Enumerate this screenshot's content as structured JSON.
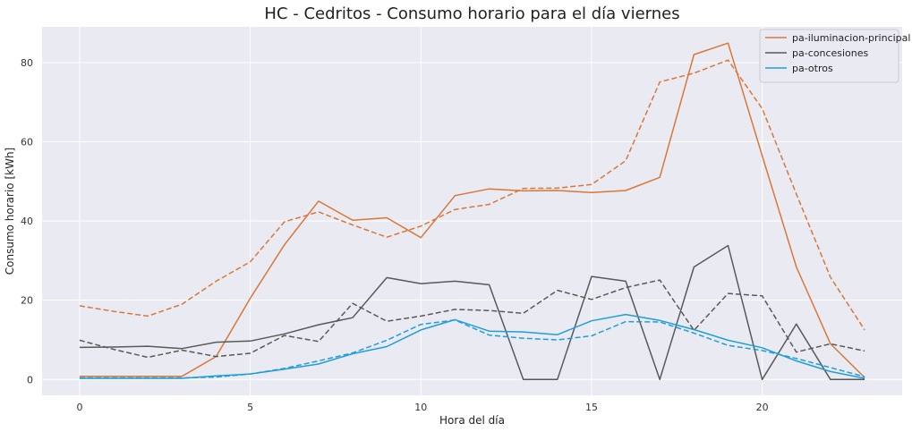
{
  "chart_data": {
    "type": "line",
    "title": "HC - Cedritos - Consumo horario para el día viernes",
    "xlabel": "Hora del día",
    "ylabel": "Consumo horario [kWh]",
    "xlim": [
      -1.1,
      24.1
    ],
    "ylim": [
      -4,
      89
    ],
    "xticks": [
      0,
      5,
      10,
      15,
      20
    ],
    "yticks": [
      0,
      20,
      40,
      60,
      80
    ],
    "grid": true,
    "legend_position": "top-right",
    "x": [
      0,
      1,
      2,
      3,
      4,
      5,
      6,
      7,
      8,
      9,
      10,
      11,
      12,
      13,
      14,
      15,
      16,
      17,
      18,
      19,
      20,
      21,
      22,
      23
    ],
    "series": [
      {
        "name": "pa-iluminacion-principal",
        "color": "#d9773a",
        "style": "solid",
        "values": [
          0.8,
          0.8,
          0.8,
          0.8,
          5.8,
          20.5,
          34,
          45,
          40.2,
          40.8,
          35.8,
          46.4,
          48.1,
          47.6,
          47.7,
          47.2,
          47.7,
          51,
          82,
          84.9,
          56.5,
          28.4,
          9,
          0.5
        ]
      },
      {
        "name": "pa-concesiones",
        "color": "#595959",
        "style": "solid",
        "values": [
          8.1,
          8.2,
          8.4,
          7.8,
          9.4,
          9.7,
          11.5,
          13.8,
          15.6,
          25.7,
          24.2,
          24.8,
          23.9,
          0,
          0,
          26,
          24.8,
          0,
          28.4,
          33.8,
          0,
          14,
          0,
          0
        ]
      },
      {
        "name": "pa-otros",
        "color": "#1f9fd8",
        "style": "solid",
        "values": [
          0.3,
          0.3,
          0.3,
          0.3,
          0.9,
          1.4,
          2.6,
          3.9,
          6.5,
          8.3,
          12.5,
          15.1,
          12.2,
          12,
          11.3,
          14.8,
          16.4,
          14.9,
          12.6,
          9.9,
          8,
          4.7,
          2,
          0.3
        ]
      },
      {
        "color": "#d9773a",
        "style": "dashed",
        "values": [
          18.6,
          17.2,
          16,
          19,
          24.8,
          29.7,
          39.8,
          42.3,
          39,
          35.9,
          38.7,
          42.9,
          44.2,
          48.2,
          48.3,
          49.2,
          55.2,
          75.1,
          77.3,
          80.6,
          68.4,
          46.8,
          25.8,
          12.5
        ]
      },
      {
        "color": "#595959",
        "style": "dashed",
        "values": [
          9.9,
          7.6,
          5.6,
          7.4,
          5.8,
          6.6,
          11.1,
          9.6,
          19.2,
          14.7,
          16,
          17.7,
          17.4,
          16.7,
          22.5,
          20.2,
          23.2,
          25.1,
          12.4,
          21.7,
          21.1,
          6.9,
          9,
          7.2
        ]
      },
      {
        "color": "#1f9fd8",
        "style": "dashed",
        "values": [
          0.4,
          0.4,
          0.4,
          0.4,
          0.6,
          1.4,
          2.8,
          4.7,
          6.7,
          9.9,
          13.9,
          15,
          11.2,
          10.4,
          10,
          11,
          14.6,
          14.5,
          11.7,
          8.6,
          7.3,
          5.3,
          3,
          0.7
        ]
      }
    ]
  }
}
